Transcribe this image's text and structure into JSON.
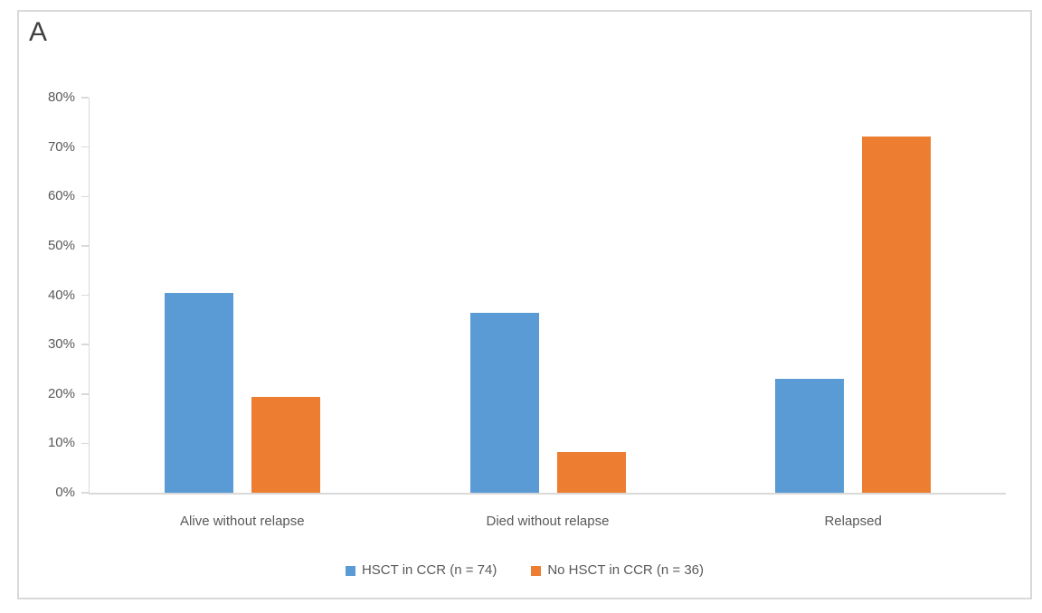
{
  "panel_label": "A",
  "colors": {
    "series1": "#5B9BD5",
    "series2": "#ED7D31",
    "axis": "#D9D9D9",
    "text": "#595959",
    "panel_label": "#404040",
    "border": "#D9D9D9"
  },
  "chart_data": {
    "type": "bar",
    "title": "",
    "categories": [
      "Alive without relapse",
      "Died without relapse",
      "Relapsed"
    ],
    "series": [
      {
        "name": "HSCT in CCR (n = 74)",
        "color": "#5B9BD5",
        "values": [
          40.5,
          36.5,
          23.0
        ]
      },
      {
        "name": "No HSCT in CCR (n = 36)",
        "color": "#ED7D31",
        "values": [
          19.4,
          8.3,
          72.2
        ]
      }
    ],
    "xlabel": "",
    "ylabel": "",
    "ylim": [
      0,
      80
    ],
    "ytick_labels": [
      "0%",
      "10%",
      "20%",
      "30%",
      "40%",
      "50%",
      "60%",
      "70%",
      "80%"
    ],
    "grid": "off",
    "legend_position": "bottom"
  }
}
